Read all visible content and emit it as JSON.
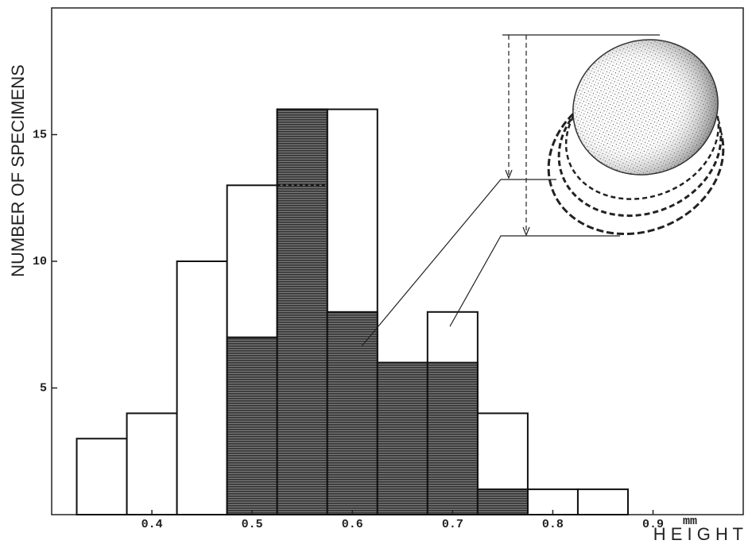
{
  "chart_data": {
    "type": "histogram",
    "y_label": "NUMBER OF SPECIMENS",
    "x_label": "H E I G H T",
    "x_unit": "mm",
    "series": [
      {
        "color": "#ffffff",
        "bins": [
          0.325,
          0.375,
          0.425,
          0.475,
          0.525,
          0.575,
          0.625,
          0.675,
          0.725,
          0.775,
          0.825,
          0.875
        ],
        "values": [
          3,
          4,
          10,
          13,
          16,
          16,
          6,
          8,
          4,
          1,
          1
        ]
      },
      {
        "color": "#555555",
        "bins": [
          0.475,
          0.525,
          0.575,
          0.625,
          0.675,
          0.725,
          0.775
        ],
        "values": [
          7,
          16,
          8,
          6,
          6,
          1
        ]
      }
    ],
    "xlim": [
      0.3,
      0.99
    ],
    "ylim": [
      0,
      20
    ],
    "xticks": [
      0.4,
      0.5,
      0.6,
      0.7,
      0.8,
      0.9
    ],
    "yticks": [
      5,
      10,
      15
    ]
  }
}
